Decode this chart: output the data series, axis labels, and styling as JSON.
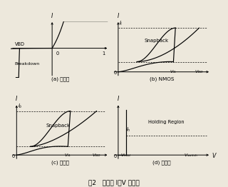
{
  "title": "图2  器件的 I－V 特性图",
  "panel_labels": [
    "(a) 二极管",
    "(b) NMOS",
    "(c) 三极管",
    "(d) 品闸管"
  ],
  "bg_color": "#ede8dc",
  "lw": 0.85,
  "fs_title": 6.5,
  "fs_sub": 5.2,
  "fs_tick": 4.8
}
